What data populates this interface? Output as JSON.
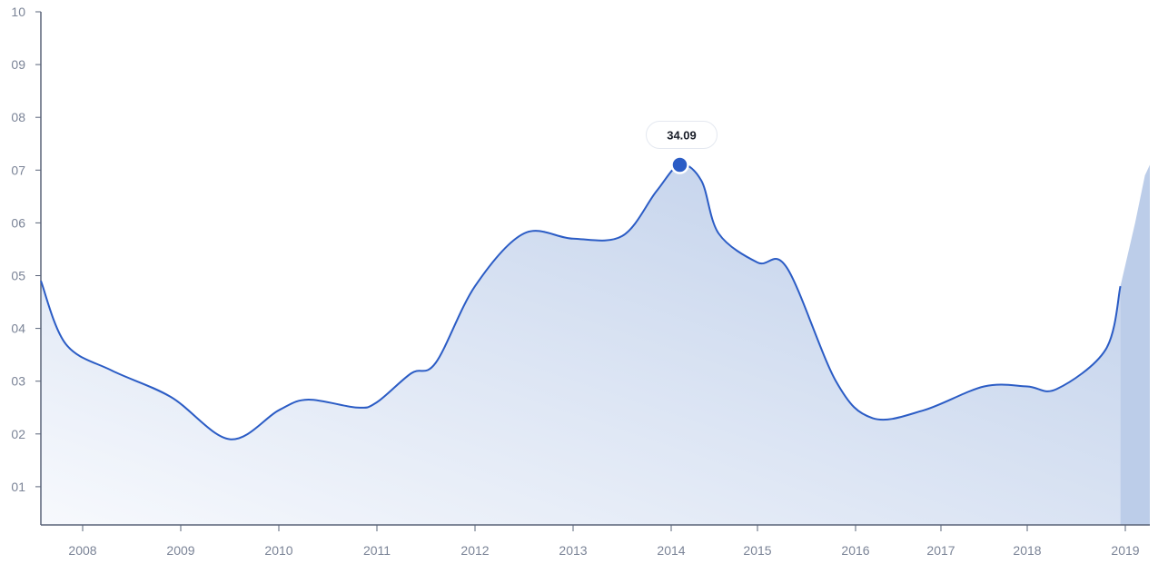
{
  "colors": {
    "line": "#2b5cc5",
    "area_top": "#bccde9",
    "area_bottom": "#f7f9fd",
    "right_fill": "#bccde9",
    "axis": "#5a6479",
    "tick_text": "#7b8497",
    "marker": "#2b5cc5",
    "tooltip_bg": "#ffffff",
    "tooltip_border": "#e4e8f0"
  },
  "chart_data": {
    "type": "area",
    "title": "",
    "xlabel": "",
    "ylabel": "",
    "ylim": [
      0,
      10
    ],
    "y_ticks": [
      "01",
      "02",
      "03",
      "04",
      "05",
      "06",
      "07",
      "08",
      "09",
      "10"
    ],
    "x_ticks": [
      "2008",
      "2009",
      "2010",
      "2011",
      "2012",
      "2013",
      "2014",
      "2015",
      "2016",
      "2017",
      "2018",
      "2019"
    ],
    "series": [
      {
        "x": [
          2007.5,
          2007.8,
          2008.3,
          2008.9,
          2009.5,
          2010.0,
          2010.3,
          2010.8,
          2011.0,
          2011.35,
          2011.6,
          2012.0,
          2012.5,
          2013.0,
          2013.5,
          2013.85,
          2014.1,
          2014.35,
          2014.55,
          2015.0,
          2015.3,
          2015.8,
          2016.2,
          2016.8,
          2017.5,
          2018.0,
          2018.3,
          2018.8,
          2018.95
        ],
        "y": [
          4.9,
          3.7,
          3.2,
          2.7,
          1.9,
          2.45,
          2.65,
          2.5,
          2.6,
          3.15,
          3.35,
          4.8,
          5.8,
          5.7,
          5.75,
          6.6,
          7.1,
          6.8,
          5.8,
          5.25,
          5.15,
          3.0,
          2.3,
          2.45,
          2.9,
          2.9,
          2.85,
          3.6,
          4.8
        ]
      }
    ],
    "right_fill": {
      "x": [
        2018.95,
        2019.1,
        2019.2,
        2019.25
      ],
      "y": [
        4.8,
        6.0,
        6.9,
        7.1
      ]
    },
    "highlight": {
      "x": 2014.1,
      "y": 7.1,
      "label": "34.09"
    }
  }
}
